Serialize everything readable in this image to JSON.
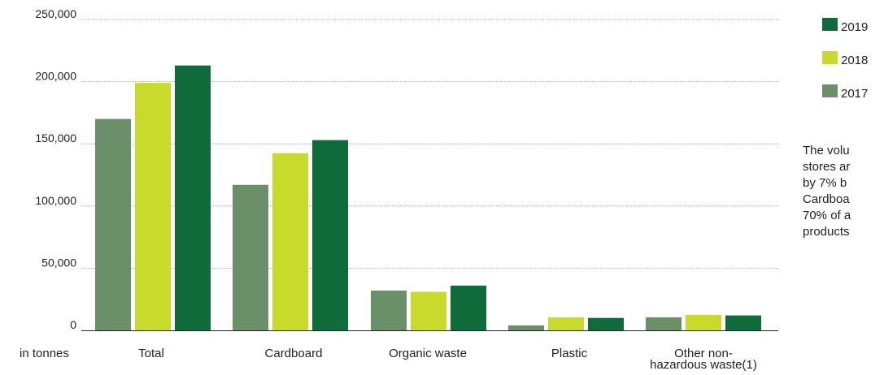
{
  "chart_data": {
    "type": "bar",
    "unit_label": "in tonnes",
    "categories": [
      "Total",
      "Cardboard",
      "Organic waste",
      "Plastic",
      "Other non-hazardous waste(1)"
    ],
    "category_lines": [
      [
        "Total"
      ],
      [
        "Cardboard"
      ],
      [
        "Organic waste"
      ],
      [
        "Plastic"
      ],
      [
        "Other non-",
        "hazardous waste(1)"
      ]
    ],
    "series": [
      {
        "name": "2017",
        "color": "#6a8f69",
        "values": [
          170000,
          117000,
          32000,
          4000,
          10500
        ]
      },
      {
        "name": "2018",
        "color": "#c8da2b",
        "values": [
          199000,
          142500,
          31000,
          10500,
          12500
        ]
      },
      {
        "name": "2019",
        "color": "#0f6b3a",
        "values": [
          213000,
          153000,
          36000,
          10000,
          12000
        ]
      }
    ],
    "ylim": [
      0,
      250000
    ],
    "yticks": [
      0,
      50000,
      100000,
      150000,
      200000,
      250000
    ],
    "ytick_labels": [
      "0",
      "50,000",
      "100,000",
      "150,000",
      "200,000",
      "250,000"
    ],
    "grid": true,
    "legend": {
      "position": "top-right",
      "order": [
        "2019",
        "2018",
        "2017"
      ]
    }
  },
  "note": {
    "lines": [
      "The volu",
      "stores ar",
      "by 7% b",
      "Cardboa",
      "70% of a",
      "products"
    ]
  }
}
